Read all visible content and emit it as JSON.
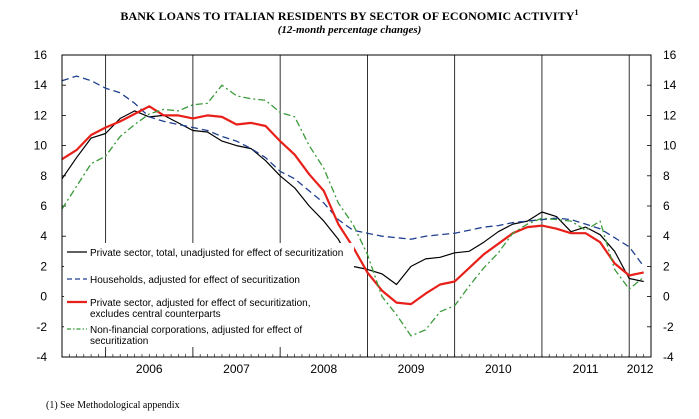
{
  "title": "BANK LOANS TO ITALIAN RESIDENTS BY SECTOR OF ECONOMIC ACTIVITY",
  "title_sup": "1",
  "subtitle": "(12-month percentage changes)",
  "footnote": "(1) See Methodological appendix",
  "chart_data": {
    "type": "line",
    "title": "BANK LOANS TO ITALIAN RESIDENTS BY SECTOR OF ECONOMIC ACTIVITY",
    "subtitle": "(12-month percentage changes)",
    "x_start": "2005-07",
    "x_end": "2012-04",
    "x_tick_labels": [
      "2006",
      "2007",
      "2008",
      "2009",
      "2010",
      "2011",
      "2012"
    ],
    "y_ticks": [
      "16",
      "14",
      "12",
      "10",
      "8",
      "6",
      "4",
      "2",
      "0",
      "-2",
      "-4"
    ],
    "ylim": [
      -4,
      16
    ],
    "right_axis": true,
    "grid": "vertical year lines",
    "legend_placement": "middle-left",
    "series": [
      {
        "name": "Private sector, total, unadjusted for effect of securitization",
        "style": "solid",
        "color": "#000000",
        "width": 1.2,
        "x": [
          "2005-07",
          "2005-09",
          "2005-11",
          "2006-01",
          "2006-03",
          "2006-05",
          "2006-07",
          "2006-09",
          "2006-11",
          "2007-01",
          "2007-03",
          "2007-05",
          "2007-07",
          "2007-09",
          "2007-11",
          "2008-01",
          "2008-03",
          "2008-05",
          "2008-07",
          "2008-09",
          "2008-11",
          "2009-01",
          "2009-03",
          "2009-05",
          "2009-07",
          "2009-09",
          "2009-11",
          "2010-01",
          "2010-03",
          "2010-05",
          "2010-07",
          "2010-09",
          "2010-11",
          "2011-01",
          "2011-03",
          "2011-05",
          "2011-07",
          "2011-09",
          "2011-11",
          "2012-01",
          "2012-03"
        ],
        "values": [
          7.8,
          9.2,
          10.5,
          10.8,
          11.8,
          12.3,
          11.9,
          12.0,
          11.5,
          11.0,
          10.9,
          10.3,
          10.0,
          9.8,
          9.0,
          8.0,
          7.2,
          6.0,
          5.0,
          3.8,
          2.0,
          1.8,
          1.5,
          0.8,
          2.0,
          2.5,
          2.6,
          2.9,
          3.0,
          3.6,
          4.3,
          4.8,
          5.0,
          5.6,
          5.3,
          4.3,
          4.6,
          4.1,
          3.0,
          1.2,
          1.0
        ]
      },
      {
        "name": "Households, adjusted for effect of securitization",
        "style": "dashed",
        "color": "#1f3f8f",
        "width": 1.3,
        "x": [
          "2005-07",
          "2005-09",
          "2005-11",
          "2006-01",
          "2006-03",
          "2006-05",
          "2006-07",
          "2006-09",
          "2006-11",
          "2007-01",
          "2007-03",
          "2007-05",
          "2007-07",
          "2007-09",
          "2007-11",
          "2008-01",
          "2008-03",
          "2008-05",
          "2008-07",
          "2008-09",
          "2008-11",
          "2009-01",
          "2009-03",
          "2009-05",
          "2009-07",
          "2009-09",
          "2009-11",
          "2010-01",
          "2010-03",
          "2010-05",
          "2010-07",
          "2010-09",
          "2010-11",
          "2011-01",
          "2011-03",
          "2011-05",
          "2011-07",
          "2011-09",
          "2011-11",
          "2012-01",
          "2012-03"
        ],
        "values": [
          14.3,
          14.6,
          14.3,
          13.8,
          13.5,
          12.8,
          11.9,
          11.6,
          11.4,
          11.2,
          11.0,
          10.6,
          10.3,
          9.8,
          9.2,
          8.3,
          7.8,
          7.0,
          6.2,
          5.1,
          4.4,
          4.2,
          4.0,
          3.9,
          3.8,
          4.0,
          4.1,
          4.2,
          4.4,
          4.6,
          4.7,
          4.9,
          5.0,
          5.1,
          5.2,
          5.1,
          4.8,
          4.5,
          3.9,
          3.3,
          2.0
        ]
      },
      {
        "name": "Private sector, adjusted for effect of securitization, excludes central counterparts",
        "style": "solid",
        "color": "#e8201a",
        "width": 2.2,
        "x": [
          "2005-07",
          "2005-09",
          "2005-11",
          "2006-01",
          "2006-03",
          "2006-05",
          "2006-07",
          "2006-09",
          "2006-11",
          "2007-01",
          "2007-03",
          "2007-05",
          "2007-07",
          "2007-09",
          "2007-11",
          "2008-01",
          "2008-03",
          "2008-05",
          "2008-07",
          "2008-09",
          "2008-11",
          "2009-01",
          "2009-03",
          "2009-05",
          "2009-07",
          "2009-09",
          "2009-11",
          "2010-01",
          "2010-03",
          "2010-05",
          "2010-07",
          "2010-09",
          "2010-11",
          "2011-01",
          "2011-03",
          "2011-05",
          "2011-07",
          "2011-09",
          "2011-11",
          "2012-01",
          "2012-03"
        ],
        "values": [
          9.1,
          9.7,
          10.7,
          11.2,
          11.6,
          12.1,
          12.6,
          12.0,
          12.0,
          11.8,
          12.0,
          11.9,
          11.4,
          11.5,
          11.3,
          10.3,
          9.4,
          8.1,
          7.0,
          4.8,
          3.3,
          1.6,
          0.4,
          -0.4,
          -0.5,
          0.2,
          0.8,
          1.0,
          1.9,
          2.8,
          3.5,
          4.2,
          4.6,
          4.7,
          4.5,
          4.2,
          4.2,
          3.6,
          2.2,
          1.4,
          1.6
        ]
      },
      {
        "name": "Non-financial corporations, adjusted for effect of securitization",
        "style": "dashdot",
        "color": "#3a9a3a",
        "width": 1.3,
        "x": [
          "2005-07",
          "2005-09",
          "2005-11",
          "2006-01",
          "2006-03",
          "2006-05",
          "2006-07",
          "2006-09",
          "2006-11",
          "2007-01",
          "2007-03",
          "2007-05",
          "2007-07",
          "2007-09",
          "2007-11",
          "2008-01",
          "2008-03",
          "2008-05",
          "2008-07",
          "2008-09",
          "2008-11",
          "2009-01",
          "2009-03",
          "2009-05",
          "2009-07",
          "2009-09",
          "2009-11",
          "2010-01",
          "2010-03",
          "2010-05",
          "2010-07",
          "2010-09",
          "2010-11",
          "2011-01",
          "2011-03",
          "2011-05",
          "2011-07",
          "2011-09",
          "2011-11",
          "2012-01",
          "2012-03"
        ],
        "values": [
          5.8,
          7.3,
          8.8,
          9.3,
          10.6,
          11.4,
          12.1,
          12.4,
          12.3,
          12.7,
          12.8,
          14.0,
          13.3,
          13.1,
          13.0,
          12.2,
          11.9,
          10.0,
          8.5,
          6.2,
          4.8,
          2.8,
          0.0,
          -1.2,
          -2.6,
          -2.2,
          -1.0,
          -0.6,
          0.7,
          1.9,
          2.9,
          4.2,
          4.8,
          5.2,
          5.1,
          5.0,
          4.4,
          5.0,
          1.8,
          0.5,
          1.3
        ]
      }
    ]
  },
  "legend": [
    {
      "line1": "Private sector, total, unadjusted for effect of securitization",
      "line2": ""
    },
    {
      "line1": "Households, adjusted for effect of securitization",
      "line2": ""
    },
    {
      "line1": "Private sector, adjusted for effect of securitization,",
      "line2": "excludes central counterparts"
    },
    {
      "line1": "Non-financial corporations, adjusted for effect of",
      "line2": "securitization"
    }
  ]
}
